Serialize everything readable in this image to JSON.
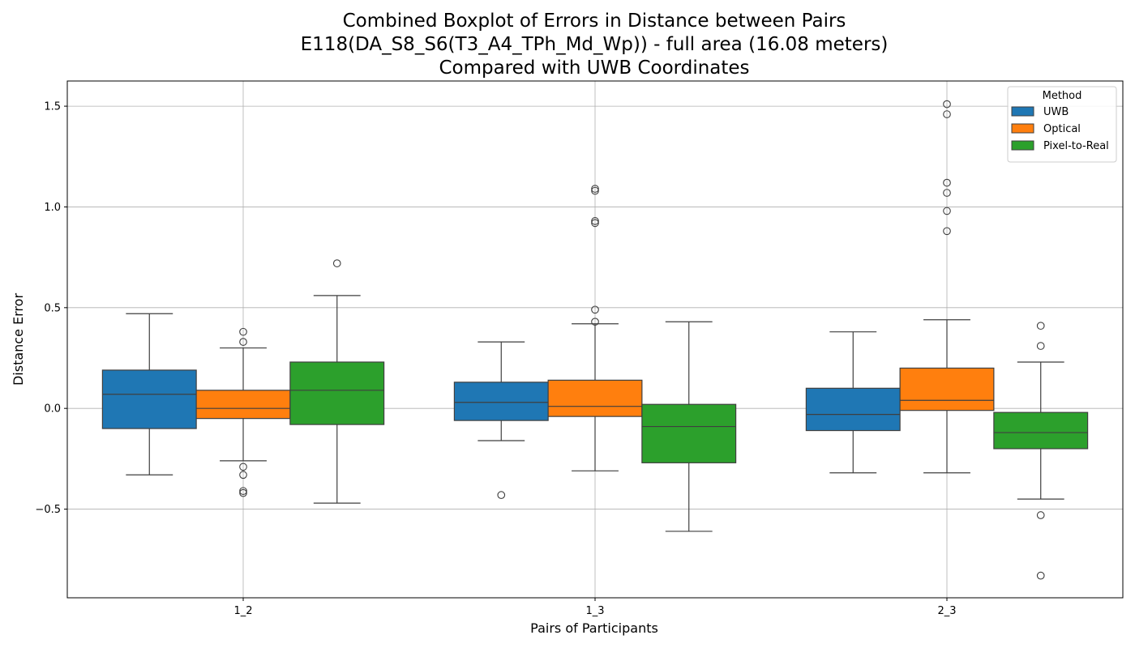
{
  "chart_data": {
    "type": "boxplot",
    "title_lines": [
      "Combined Boxplot of Errors in Distance between Pairs",
      "E118(DA_S8_S6(T3_A4_TPh_Md_Wp)) - full area (16.08 meters)",
      "Compared with UWB Coordinates"
    ],
    "xlabel": "Pairs of Participants",
    "ylabel": "Distance Error",
    "ylim": [
      -0.94,
      1.625
    ],
    "yticks": [
      -0.5,
      0.0,
      0.5,
      1.0,
      1.5
    ],
    "ytick_labels": [
      "−0.5",
      "0.0",
      "0.5",
      "1.0",
      "1.5"
    ],
    "grid": true,
    "categories": [
      "1_2",
      "1_3",
      "2_3"
    ],
    "legend": {
      "title": "Method",
      "position": "top-right"
    },
    "series": [
      {
        "name": "UWB",
        "color": "#1f77b4",
        "boxes": [
          {
            "whisker_low": -0.33,
            "q1": -0.1,
            "median": 0.07,
            "q3": 0.19,
            "whisker_high": 0.47,
            "outliers": []
          },
          {
            "whisker_low": -0.16,
            "q1": -0.06,
            "median": 0.03,
            "q3": 0.13,
            "whisker_high": 0.33,
            "outliers": [
              -0.43
            ]
          },
          {
            "whisker_low": -0.32,
            "q1": -0.11,
            "median": -0.03,
            "q3": 0.1,
            "whisker_high": 0.38,
            "outliers": []
          }
        ]
      },
      {
        "name": "Optical",
        "color": "#ff7f0e",
        "boxes": [
          {
            "whisker_low": -0.26,
            "q1": -0.05,
            "median": 0.0,
            "q3": 0.09,
            "whisker_high": 0.3,
            "outliers": [
              0.38,
              0.33,
              -0.29,
              -0.33,
              -0.41,
              -0.42
            ]
          },
          {
            "whisker_low": -0.31,
            "q1": -0.04,
            "median": 0.01,
            "q3": 0.14,
            "whisker_high": 0.42,
            "outliers": [
              1.09,
              1.08,
              0.93,
              0.92,
              0.49,
              0.43
            ]
          },
          {
            "whisker_low": -0.32,
            "q1": -0.01,
            "median": 0.04,
            "q3": 0.2,
            "whisker_high": 0.44,
            "outliers": [
              1.51,
              1.46,
              1.12,
              1.07,
              0.98,
              0.88
            ]
          }
        ]
      },
      {
        "name": "Pixel-to-Real",
        "color": "#2ca02c",
        "boxes": [
          {
            "whisker_low": -0.47,
            "q1": -0.08,
            "median": 0.09,
            "q3": 0.23,
            "whisker_high": 0.56,
            "outliers": [
              0.72
            ]
          },
          {
            "whisker_low": -0.61,
            "q1": -0.27,
            "median": -0.09,
            "q3": 0.02,
            "whisker_high": 0.43,
            "outliers": []
          },
          {
            "whisker_low": -0.45,
            "q1": -0.2,
            "median": -0.12,
            "q3": -0.02,
            "whisker_high": 0.23,
            "outliers": [
              0.41,
              0.31,
              -0.53,
              -0.83
            ]
          }
        ]
      }
    ]
  }
}
